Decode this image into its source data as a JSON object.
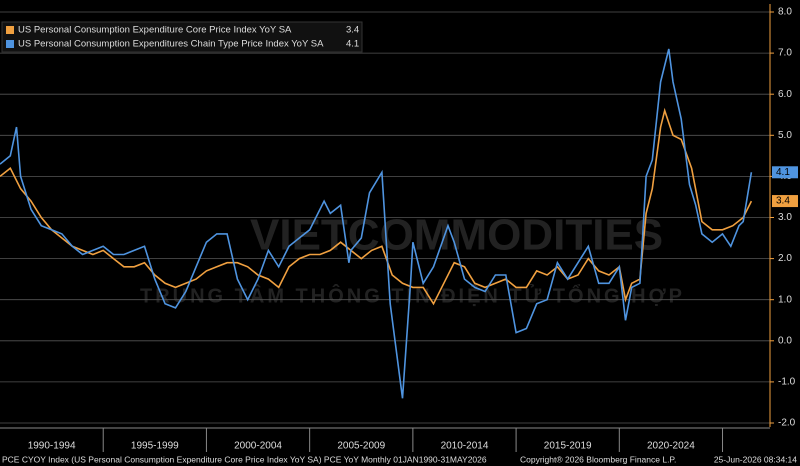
{
  "chart_data": {
    "type": "line",
    "watermark": [
      "VIETCOMMODITIES",
      "TRUNG TÂM THÔNG TIN ĐIỆN TỬ TỔNG HỢP"
    ],
    "xlim": [
      1990,
      2027.3
    ],
    "xticks": [
      1995,
      2000,
      2005,
      2010,
      2015,
      2020,
      2025
    ],
    "xband_labels": [
      "1990-1994",
      "1995-1999",
      "2000-2004",
      "2005-2009",
      "2010-2014",
      "2015-2019",
      "2020-2024"
    ],
    "ylim": [
      -2,
      8
    ],
    "yticks": [
      {
        "value": -2,
        "label": "-2.0"
      },
      {
        "value": -1,
        "label": "-1.0"
      },
      {
        "value": 0,
        "label": "0.0"
      },
      {
        "value": 1,
        "label": "1.0"
      },
      {
        "value": 2,
        "label": "2.0"
      },
      {
        "value": 3,
        "label": "3.0"
      },
      {
        "value": 4,
        "label": "4.0"
      },
      {
        "value": 5,
        "label": "5.0"
      },
      {
        "value": 6,
        "label": "6.0"
      },
      {
        "value": 7,
        "label": "7.0"
      },
      {
        "value": 8,
        "label": "8.0"
      }
    ],
    "grid": true,
    "series": [
      {
        "name": "US Personal Consumption Expenditure Core Price Index YoY SA",
        "color": "#f0a040",
        "last_value": 3.4,
        "x": [
          1990,
          1990.5,
          1991,
          1991.5,
          1992,
          1992.5,
          1993,
          1993.5,
          1994,
          1994.5,
          1995,
          1995.5,
          1996,
          1996.5,
          1997,
          1997.5,
          1998,
          1998.5,
          1999,
          1999.5,
          2000,
          2000.5,
          2001,
          2001.5,
          2002,
          2002.5,
          2003,
          2003.5,
          2004,
          2004.5,
          2005,
          2005.5,
          2006,
          2006.5,
          2007,
          2007.5,
          2008,
          2008.5,
          2009,
          2009.5,
          2010,
          2010.5,
          2011,
          2011.5,
          2012,
          2012.5,
          2013,
          2013.5,
          2014,
          2014.5,
          2015,
          2015.5,
          2016,
          2016.5,
          2017,
          2017.5,
          2018,
          2018.5,
          2019,
          2019.5,
          2020,
          2020.3,
          2020.6,
          2021,
          2021.3,
          2021.6,
          2022,
          2022.2,
          2022.6,
          2023,
          2023.5,
          2024,
          2024.5,
          2025,
          2025.5,
          2026,
          2026.4
        ],
        "values": [
          4.0,
          4.2,
          3.7,
          3.4,
          3.0,
          2.7,
          2.5,
          2.3,
          2.2,
          2.1,
          2.2,
          2.0,
          1.8,
          1.8,
          1.9,
          1.6,
          1.4,
          1.3,
          1.4,
          1.5,
          1.7,
          1.8,
          1.9,
          1.9,
          1.8,
          1.6,
          1.5,
          1.3,
          1.8,
          2.0,
          2.1,
          2.1,
          2.2,
          2.4,
          2.2,
          2.0,
          2.2,
          2.3,
          1.6,
          1.4,
          1.3,
          1.3,
          0.9,
          1.4,
          1.9,
          1.8,
          1.4,
          1.3,
          1.4,
          1.5,
          1.3,
          1.3,
          1.7,
          1.6,
          1.8,
          1.5,
          1.6,
          2.0,
          1.7,
          1.6,
          1.8,
          1.0,
          1.4,
          1.5,
          3.1,
          3.7,
          5.2,
          5.6,
          5.0,
          4.9,
          4.2,
          2.9,
          2.7,
          2.7,
          2.8,
          3.0,
          3.4
        ]
      },
      {
        "name": "US Personal Consumption Expenditures Chain Type Price Index YoY SA",
        "color": "#4f94e0",
        "last_value": 4.1,
        "x": [
          1990,
          1990.5,
          1990.8,
          1991,
          1991.5,
          1992,
          1992.5,
          1993,
          1993.5,
          1994,
          1994.5,
          1995,
          1995.5,
          1996,
          1996.5,
          1997,
          1997.5,
          1998,
          1998.5,
          1999,
          1999.5,
          2000,
          2000.5,
          2001,
          2001.5,
          2002,
          2002.5,
          2003,
          2003.5,
          2004,
          2004.5,
          2005,
          2005.7,
          2006,
          2006.5,
          2006.9,
          2007,
          2007.5,
          2007.9,
          2008.5,
          2008.9,
          2009.5,
          2009.9,
          2010,
          2010.5,
          2011,
          2011.7,
          2012,
          2012.5,
          2013,
          2013.5,
          2014,
          2014.5,
          2015,
          2015.5,
          2016,
          2016.5,
          2017,
          2017.5,
          2018,
          2018.5,
          2019,
          2019.5,
          2020,
          2020.3,
          2020.6,
          2021,
          2021.3,
          2021.6,
          2022,
          2022.4,
          2022.6,
          2023,
          2023.4,
          2023.7,
          2024,
          2024.5,
          2025,
          2025.4,
          2025.8,
          2026,
          2026.4
        ],
        "values": [
          4.3,
          4.5,
          5.2,
          4.0,
          3.2,
          2.8,
          2.7,
          2.6,
          2.3,
          2.1,
          2.2,
          2.3,
          2.1,
          2.1,
          2.2,
          2.3,
          1.5,
          0.9,
          0.8,
          1.2,
          1.8,
          2.4,
          2.6,
          2.6,
          1.5,
          1.0,
          1.5,
          2.2,
          1.8,
          2.3,
          2.5,
          2.7,
          3.4,
          3.1,
          3.3,
          1.9,
          2.2,
          2.5,
          3.6,
          4.1,
          0.9,
          -1.4,
          1.5,
          2.4,
          1.4,
          1.8,
          2.8,
          2.4,
          1.5,
          1.3,
          1.2,
          1.6,
          1.6,
          0.2,
          0.3,
          0.9,
          1.0,
          1.9,
          1.5,
          1.9,
          2.3,
          1.4,
          1.4,
          1.8,
          0.5,
          1.3,
          1.4,
          4.0,
          4.4,
          6.3,
          7.1,
          6.3,
          5.4,
          3.8,
          3.3,
          2.6,
          2.4,
          2.6,
          2.3,
          2.8,
          2.9,
          4.1
        ]
      }
    ],
    "footer": [
      "PCE CYOY Index (US Personal Consumption Expenditure Core Price Index YoY SA) PCE YoY Monthly 01JAN1990-31MAY2026",
      "Copyright® 2026 Bloomberg Finance L.P.",
      "25-Jun-2026 08:34:14"
    ]
  }
}
